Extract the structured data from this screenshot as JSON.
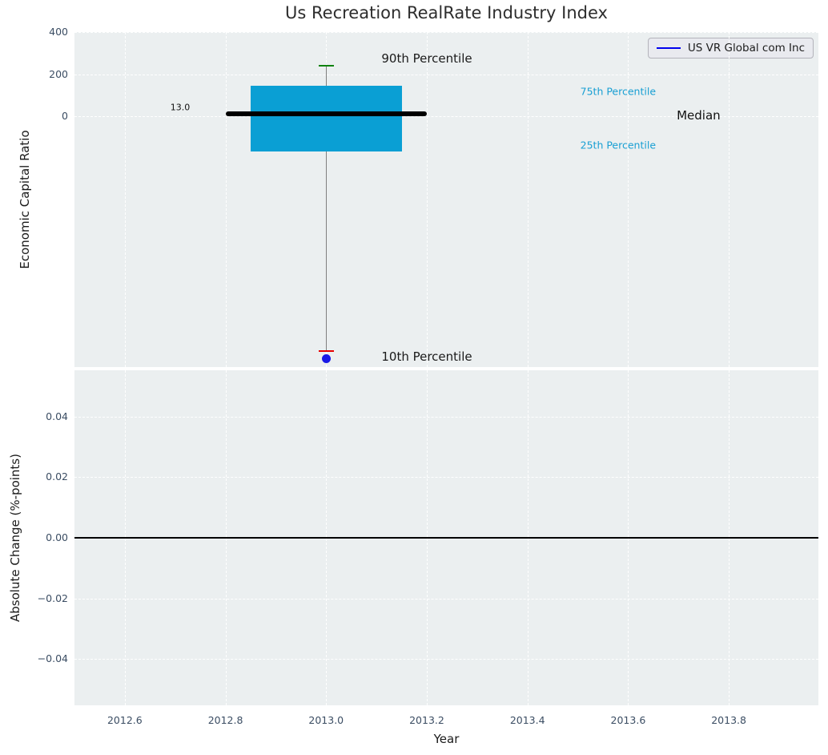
{
  "title": "Us Recreation RealRate Industry Index",
  "legend": {
    "label": "US VR Global com Inc"
  },
  "xlabel": "Year",
  "colors": {
    "figure_bg": "#ffffff",
    "axes_bg": "#ebeff0",
    "grid": "#ffffff",
    "tick_label": "#3b4d63",
    "title_text": "#2d2d2d",
    "axis_label": "#1a1a1a",
    "box_fill": "#0a9fd4",
    "median_line": "#000000",
    "whisker": "#7f7f7f",
    "p90_cap": "#0f820f",
    "p10_cap": "#e60000",
    "company_point": "#1919e6",
    "legend_line": "#0000ee",
    "legend_bg": "#e9eaef",
    "legend_border": "#b3b3bb",
    "percentile_text": "#189fd3",
    "zero_line": "#000000"
  },
  "xticks": [
    {
      "value": 2012.6,
      "label": "2012.6"
    },
    {
      "value": 2012.8,
      "label": "2012.8"
    },
    {
      "value": 2013.0,
      "label": "2013.0"
    },
    {
      "value": 2013.2,
      "label": "2013.2"
    },
    {
      "value": 2013.4,
      "label": "2013.4"
    },
    {
      "value": 2013.6,
      "label": "2013.6"
    },
    {
      "value": 2013.8,
      "label": "2013.8"
    }
  ],
  "chart_data": [
    {
      "type": "box",
      "title": "Us Recreation RealRate Industry Index",
      "ylabel": "Economic Capital Ratio",
      "xlim": [
        2012.5,
        2013.978
      ],
      "ylim": [
        -1185,
        400
      ],
      "grid": true,
      "legend_position": "upper right",
      "yticks": [
        {
          "value": 400,
          "label": "400"
        },
        {
          "value": 200,
          "label": "200"
        },
        {
          "value": 0,
          "label": "0"
        }
      ],
      "box": {
        "x": 2013.0,
        "box_left": 2012.85,
        "box_right": 2013.15,
        "q3": 145,
        "q1": -165,
        "median": 13.0,
        "median_left": 2012.8,
        "median_right": 2013.2,
        "p90": 240,
        "p10": -1110,
        "cap_half_width": 0.015,
        "company_point": {
          "x": 2013.0,
          "y": -1147,
          "name": "US VR Global com Inc"
        }
      },
      "annotations": [
        {
          "id": "p90-label",
          "text": "90th Percentile",
          "x": 2013.2,
          "y": 275,
          "color": "#1a1a1a",
          "size": 15
        },
        {
          "id": "p10-label",
          "text": "10th Percentile",
          "x": 2013.2,
          "y": -1134,
          "color": "#1a1a1a",
          "size": 15
        },
        {
          "id": "p75-label",
          "text": "75th Percentile",
          "x": 2013.58,
          "y": 120,
          "color": "#189fd3",
          "size": 12.5
        },
        {
          "id": "p25-label",
          "text": "25th Percentile",
          "x": 2013.58,
          "y": -135,
          "color": "#189fd3",
          "size": 12.5
        },
        {
          "id": "median-label",
          "text": "Median",
          "x": 2013.74,
          "y": 5,
          "color": "#111111",
          "size": 15
        },
        {
          "id": "median-value-label",
          "text": "13.0",
          "x": 2012.71,
          "y": 45,
          "color": "#111111",
          "size": 11
        }
      ]
    },
    {
      "type": "line",
      "ylabel": "Absolute Change (%-points)",
      "xlabel": "Year",
      "xlim": [
        2012.5,
        2013.978
      ],
      "ylim": [
        -0.0553,
        0.0553
      ],
      "grid": true,
      "yticks": [
        {
          "value": 0.04,
          "label": "0.04"
        },
        {
          "value": 0.02,
          "label": "0.02"
        },
        {
          "value": 0.0,
          "label": "0.00"
        },
        {
          "value": -0.02,
          "label": "−0.02"
        },
        {
          "value": -0.04,
          "label": "−0.04"
        }
      ],
      "zero_line": 0.0,
      "series": []
    }
  ]
}
